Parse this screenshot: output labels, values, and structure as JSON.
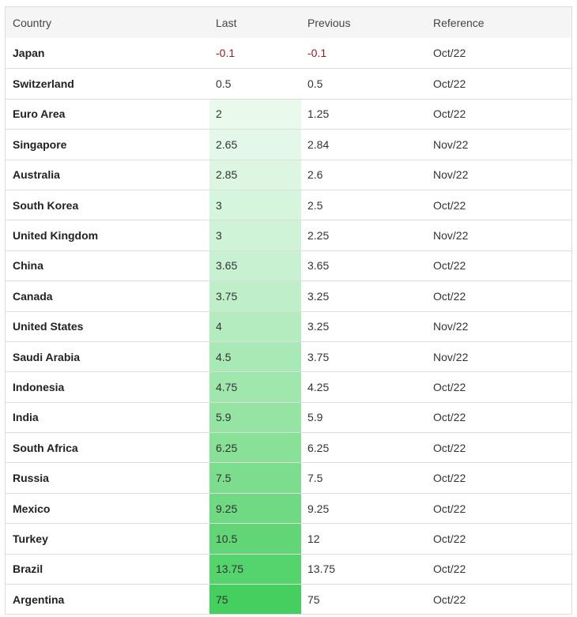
{
  "table": {
    "headers": [
      "Country",
      "Last",
      "Previous",
      "Reference"
    ],
    "rows": [
      {
        "country": "Japan",
        "last": "-0.1",
        "previous": "-0.1",
        "reference": "Oct/22",
        "shade": "#ffffff"
      },
      {
        "country": "Switzerland",
        "last": "0.5",
        "previous": "0.5",
        "reference": "Oct/22",
        "shade": "#ffffff"
      },
      {
        "country": "Euro Area",
        "last": "2",
        "previous": "1.25",
        "reference": "Oct/22",
        "shade": "#e9f9ec"
      },
      {
        "country": "Singapore",
        "last": "2.65",
        "previous": "2.84",
        "reference": "Nov/22",
        "shade": "#e3f8e8"
      },
      {
        "country": "Australia",
        "last": "2.85",
        "previous": "2.6",
        "reference": "Nov/22",
        "shade": "#dcf6e2"
      },
      {
        "country": "South Korea",
        "last": "3",
        "previous": "2.5",
        "reference": "Oct/22",
        "shade": "#d6f5dd"
      },
      {
        "country": "United Kingdom",
        "last": "3",
        "previous": "2.25",
        "reference": "Nov/22",
        "shade": "#cff3d7"
      },
      {
        "country": "China",
        "last": "3.65",
        "previous": "3.65",
        "reference": "Oct/22",
        "shade": "#c7f1d0"
      },
      {
        "country": "Canada",
        "last": "3.75",
        "previous": "3.25",
        "reference": "Oct/22",
        "shade": "#bfefc9"
      },
      {
        "country": "United States",
        "last": "4",
        "previous": "3.25",
        "reference": "Nov/22",
        "shade": "#b4ecbf"
      },
      {
        "country": "Saudi Arabia",
        "last": "4.5",
        "previous": "3.75",
        "reference": "Nov/22",
        "shade": "#a9e9b5"
      },
      {
        "country": "Indonesia",
        "last": "4.75",
        "previous": "4.25",
        "reference": "Oct/22",
        "shade": "#a0e7ad"
      },
      {
        "country": "India",
        "last": "5.9",
        "previous": "5.9",
        "reference": "Oct/22",
        "shade": "#95e4a3"
      },
      {
        "country": "South Africa",
        "last": "6.25",
        "previous": "6.25",
        "reference": "Oct/22",
        "shade": "#89e198"
      },
      {
        "country": "Russia",
        "last": "7.5",
        "previous": "7.5",
        "reference": "Oct/22",
        "shade": "#7ddd8e"
      },
      {
        "country": "Mexico",
        "last": "9.25",
        "previous": "9.25",
        "reference": "Oct/22",
        "shade": "#6fda83"
      },
      {
        "country": "Turkey",
        "last": "10.5",
        "previous": "12",
        "reference": "Oct/22",
        "shade": "#62d677"
      },
      {
        "country": "Brazil",
        "last": "13.75",
        "previous": "13.75",
        "reference": "Oct/22",
        "shade": "#55d36c"
      },
      {
        "country": "Argentina",
        "last": "75",
        "previous": "75",
        "reference": "Oct/22",
        "shade": "#45cf5f"
      }
    ]
  },
  "colors": {
    "negative": "#8b1c1c",
    "header_bg": "#f5f5f5",
    "border": "#dddddd"
  }
}
